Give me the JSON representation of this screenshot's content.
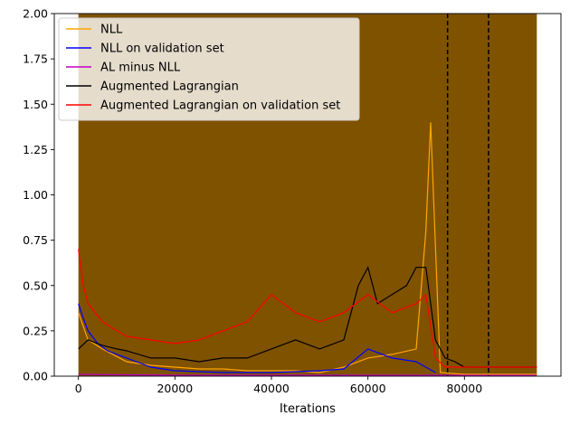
{
  "chart_data": {
    "type": "line",
    "title": "",
    "xlabel": "Iterations",
    "ylabel": "",
    "xlim": [
      -5000,
      100000
    ],
    "ylim": [
      0,
      2.0
    ],
    "x_ticks": [
      0,
      20000,
      40000,
      60000,
      80000
    ],
    "x_tick_labels": [
      "0",
      "20000",
      "40000",
      "60000",
      "80000"
    ],
    "y_ticks": [
      0,
      0.25,
      0.5,
      0.75,
      1.0,
      1.25,
      1.5,
      1.75,
      2.0
    ],
    "y_tick_labels": [
      "0.00",
      "0.25",
      "0.50",
      "0.75",
      "1.00",
      "1.25",
      "1.50",
      "1.75",
      "2.00"
    ],
    "grid": false,
    "legend_position": "upper-left",
    "vlines": [
      {
        "x": 76500,
        "style": "dashed",
        "color": "#000000"
      },
      {
        "x": 85000,
        "style": "dashed",
        "color": "#000000"
      }
    ],
    "series": [
      {
        "name": "NLL",
        "color": "#ffa500",
        "x": [
          0,
          2000,
          5000,
          10000,
          15000,
          20000,
          25000,
          30000,
          35000,
          40000,
          45000,
          50000,
          55000,
          60000,
          65000,
          70000,
          72000,
          73000,
          75000,
          80000,
          85000,
          90000,
          95000
        ],
        "values": [
          0.35,
          0.2,
          0.15,
          0.08,
          0.06,
          0.05,
          0.04,
          0.04,
          0.03,
          0.03,
          0.03,
          0.02,
          0.05,
          0.1,
          0.12,
          0.15,
          0.8,
          1.4,
          0.02,
          0.01,
          0.01,
          0.01,
          0.01
        ]
      },
      {
        "name": "NLL on validation set",
        "color": "#0000ff",
        "x": [
          0,
          1000,
          2000,
          4000,
          6000,
          8000,
          10000,
          12000,
          15000,
          20000,
          30000,
          40000,
          50000,
          55000,
          60000,
          65000,
          70000,
          72000,
          74000
        ],
        "values": [
          0.4,
          0.32,
          0.25,
          0.18,
          0.14,
          0.12,
          0.1,
          0.08,
          0.05,
          0.03,
          0.02,
          0.02,
          0.03,
          0.04,
          0.15,
          0.1,
          0.08,
          0.05,
          0.02
        ]
      },
      {
        "name": "AL minus NLL",
        "color": "#bf00bf",
        "x": [
          0,
          20000,
          40000,
          60000,
          80000,
          95000
        ],
        "values": [
          0.01,
          0.005,
          0.005,
          0.005,
          0.005,
          0.005
        ]
      },
      {
        "name": "Augmented Lagrangian",
        "color": "#000000",
        "x": [
          0,
          2000,
          5000,
          8000,
          10000,
          15000,
          20000,
          25000,
          30000,
          35000,
          40000,
          45000,
          50000,
          55000,
          58000,
          60000,
          62000,
          65000,
          68000,
          70000,
          72000,
          74000,
          76000,
          78000,
          80000,
          85000,
          90000,
          95000
        ],
        "values": [
          0.15,
          0.2,
          0.17,
          0.15,
          0.14,
          0.1,
          0.1,
          0.08,
          0.1,
          0.1,
          0.15,
          0.2,
          0.15,
          0.2,
          0.5,
          0.6,
          0.4,
          0.45,
          0.5,
          0.6,
          0.6,
          0.2,
          0.1,
          0.08,
          0.05,
          0.05,
          0.05,
          0.05
        ]
      },
      {
        "name": "Augmented Lagrangian on validation set",
        "color": "#ff0000",
        "x": [
          0,
          1000,
          2000,
          5000,
          8000,
          10000,
          15000,
          20000,
          25000,
          30000,
          35000,
          40000,
          45000,
          50000,
          55000,
          60000,
          65000,
          70000,
          72000,
          74000,
          76000,
          80000,
          85000,
          90000,
          95000
        ],
        "values": [
          0.7,
          0.5,
          0.4,
          0.3,
          0.25,
          0.22,
          0.2,
          0.18,
          0.2,
          0.25,
          0.3,
          0.45,
          0.35,
          0.3,
          0.35,
          0.45,
          0.35,
          0.4,
          0.45,
          0.1,
          0.05,
          0.05,
          0.05,
          0.05,
          0.05
        ]
      },
      {
        "name": "",
        "color": "#7f5200",
        "x": [
          0,
          95000
        ],
        "values": [
          2.0,
          2.0
        ]
      }
    ]
  }
}
